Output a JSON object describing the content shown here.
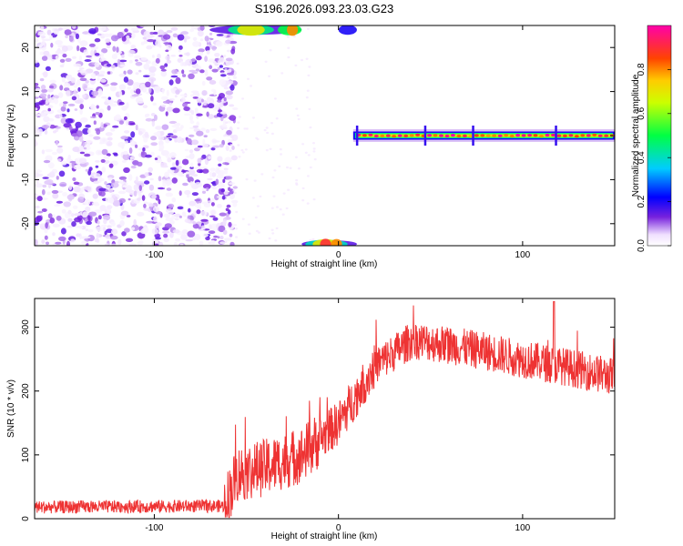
{
  "title": "S196.2026.093.23.03.G23",
  "chart_data": [
    {
      "type": "heatmap",
      "xlabel": "Height of straight line (km)",
      "ylabel": "Frequency (Hz)",
      "xlim": [
        -165,
        150
      ],
      "ylim": [
        -25,
        25
      ],
      "x_ticks": [
        -100,
        0,
        100
      ],
      "y_ticks": [
        -20,
        -10,
        0,
        10,
        20
      ],
      "description_regions": [
        {
          "name": "noise",
          "x_range": [
            -165,
            -62
          ],
          "freq_range": [
            -25,
            25
          ],
          "amplitude": 0.12
        },
        {
          "name": "signal-line",
          "x_range": [
            8,
            150
          ],
          "freq_center": 0,
          "amplitude": 0.95
        },
        {
          "name": "top-edge-signal",
          "x_range": [
            -70,
            10
          ],
          "freq_center": 24,
          "amplitude": 0.6
        },
        {
          "name": "bottom-edge-signal",
          "x_range": [
            -20,
            10
          ],
          "freq_center": -24,
          "amplitude": 0.7
        }
      ],
      "colorbar": {
        "label": "Normalized spectral amplitude",
        "range": [
          0,
          1
        ],
        "ticks": [
          "0.0",
          "0.2",
          "0.4",
          "0.6",
          "0.8"
        ],
        "tick_values": [
          0,
          0.2,
          0.4,
          0.6,
          0.8
        ]
      }
    },
    {
      "type": "line",
      "xlabel": "Height of straight line (km)",
      "ylabel": "SNR (10 * v/v)",
      "xlim": [
        -165,
        150
      ],
      "ylim": [
        0,
        345
      ],
      "x_ticks": [
        -100,
        0,
        100
      ],
      "y_ticks": [
        0,
        100,
        200,
        300
      ],
      "color": "#ee3333",
      "trend": {
        "x": [
          -165,
          -62,
          -55,
          -40,
          -20,
          0,
          20,
          40,
          60,
          80,
          100,
          120,
          140,
          150
        ],
        "y": [
          18,
          20,
          70,
          80,
          100,
          150,
          240,
          280,
          272,
          262,
          250,
          240,
          228,
          222
        ]
      }
    }
  ]
}
